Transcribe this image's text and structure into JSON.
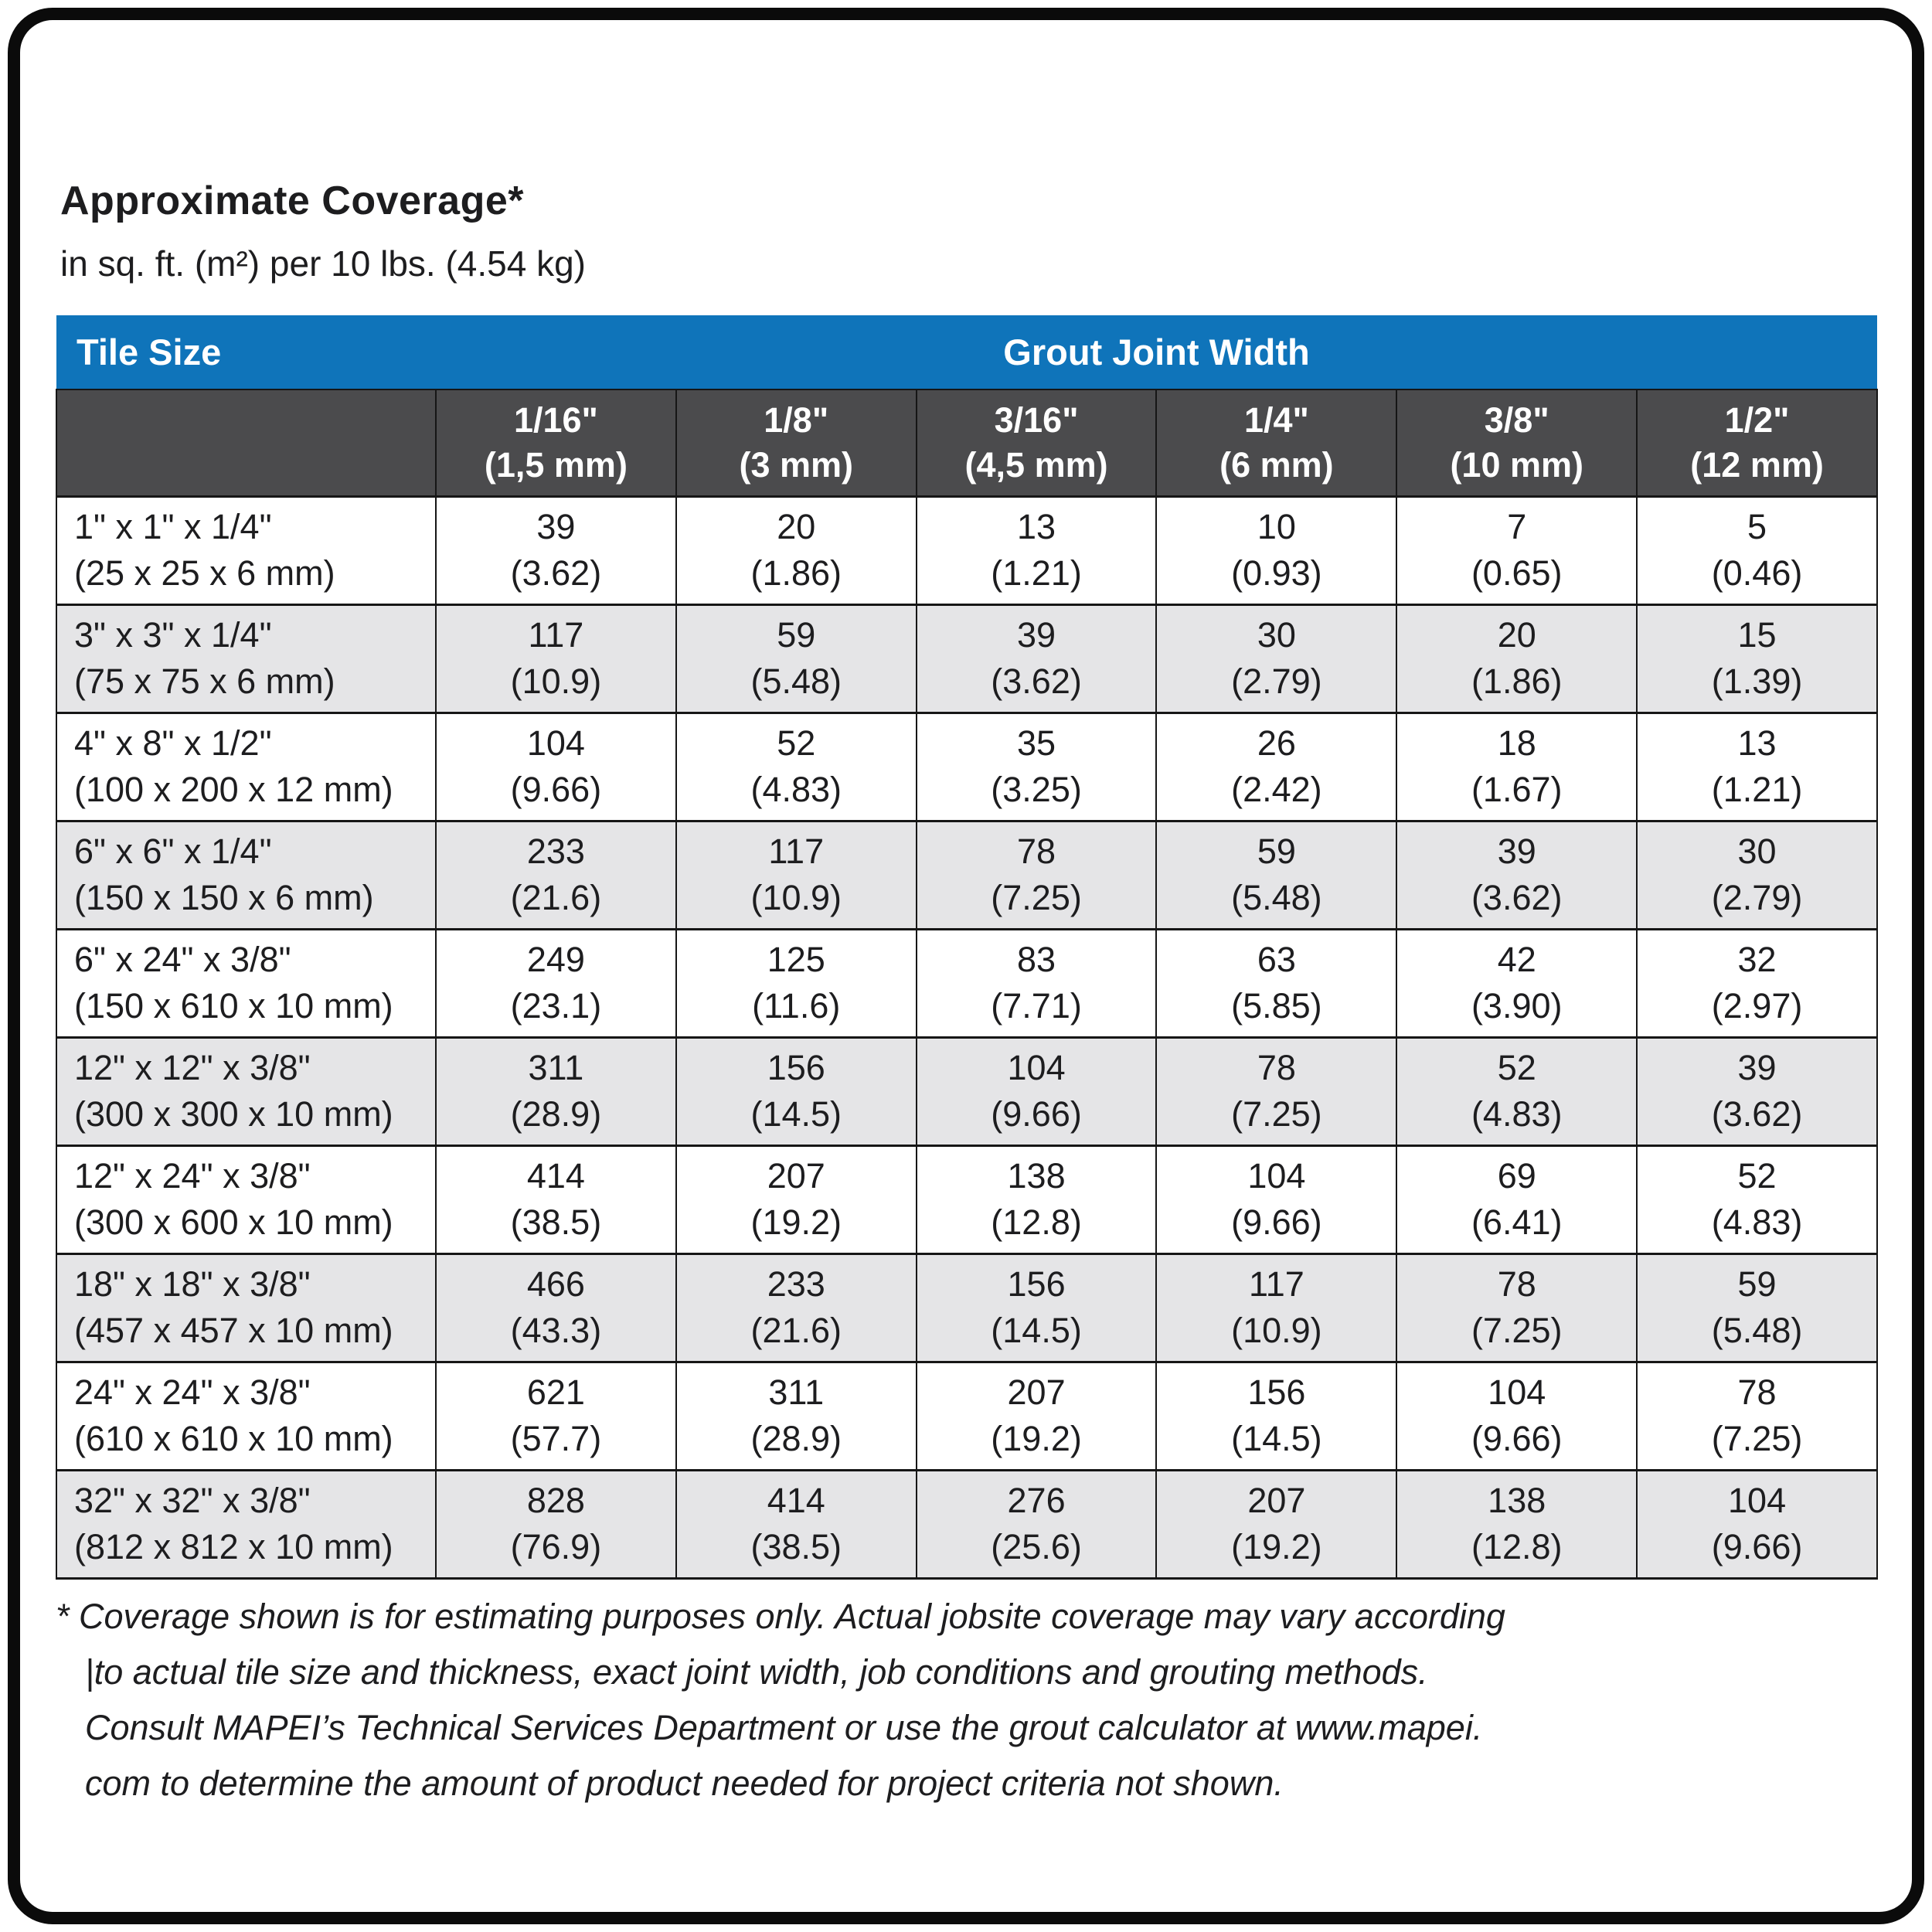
{
  "page": {
    "title": "Approximate Coverage*",
    "subtitle": "in sq. ft. (m²) per 10 lbs. (4.54 kg)"
  },
  "colors": {
    "header_blue": "#0f74ba",
    "header_dark_gray": "#4b4b4d",
    "row_alternate_gray": "#e5e5e7",
    "text": "#1d1d1f"
  },
  "table": {
    "header": {
      "tile_size": "Tile Size",
      "grout_joint_width": "Grout Joint Width"
    },
    "columns": [
      {
        "size": "1/16\"",
        "metric": "(1,5 mm)"
      },
      {
        "size": "1/8\"",
        "metric": "(3 mm)"
      },
      {
        "size": "3/16\"",
        "metric": "(4,5 mm)"
      },
      {
        "size": "1/4\"",
        "metric": "(6 mm)"
      },
      {
        "size": "3/8\"",
        "metric": "(10 mm)"
      },
      {
        "size": "1/2\"",
        "metric": "(12 mm)"
      }
    ],
    "rows": [
      {
        "tile": "1\" x 1\" x 1/4\"",
        "tile_metric": "(25 x 25 x 6 mm)",
        "values": [
          {
            "v": "39",
            "m": "(3.62)"
          },
          {
            "v": "20",
            "m": "(1.86)"
          },
          {
            "v": "13",
            "m": "(1.21)"
          },
          {
            "v": "10",
            "m": "(0.93)"
          },
          {
            "v": "7",
            "m": "(0.65)"
          },
          {
            "v": "5",
            "m": "(0.46)"
          }
        ]
      },
      {
        "tile": "3\" x 3\" x 1/4\"",
        "tile_metric": "(75 x 75 x 6 mm)",
        "values": [
          {
            "v": "117",
            "m": "(10.9)"
          },
          {
            "v": "59",
            "m": "(5.48)"
          },
          {
            "v": "39",
            "m": "(3.62)"
          },
          {
            "v": "30",
            "m": "(2.79)"
          },
          {
            "v": "20",
            "m": "(1.86)"
          },
          {
            "v": "15",
            "m": "(1.39)"
          }
        ]
      },
      {
        "tile": "4\" x 8\" x 1/2\"",
        "tile_metric": "(100 x 200 x 12 mm)",
        "values": [
          {
            "v": "104",
            "m": "(9.66)"
          },
          {
            "v": "52",
            "m": "(4.83)"
          },
          {
            "v": "35",
            "m": "(3.25)"
          },
          {
            "v": "26",
            "m": "(2.42)"
          },
          {
            "v": "18",
            "m": "(1.67)"
          },
          {
            "v": "13",
            "m": "(1.21)"
          }
        ]
      },
      {
        "tile": "6\" x 6\" x 1/4\"",
        "tile_metric": "(150 x 150 x 6 mm)",
        "values": [
          {
            "v": "233",
            "m": "(21.6)"
          },
          {
            "v": "117",
            "m": "(10.9)"
          },
          {
            "v": "78",
            "m": "(7.25)"
          },
          {
            "v": "59",
            "m": "(5.48)"
          },
          {
            "v": "39",
            "m": "(3.62)"
          },
          {
            "v": "30",
            "m": "(2.79)"
          }
        ]
      },
      {
        "tile": "6\" x 24\" x 3/8\"",
        "tile_metric": "(150 x 610 x 10 mm)",
        "values": [
          {
            "v": "249",
            "m": "(23.1)"
          },
          {
            "v": "125",
            "m": "(11.6)"
          },
          {
            "v": "83",
            "m": "(7.71)"
          },
          {
            "v": "63",
            "m": "(5.85)"
          },
          {
            "v": "42",
            "m": "(3.90)"
          },
          {
            "v": "32",
            "m": "(2.97)"
          }
        ]
      },
      {
        "tile": "12\" x 12\" x 3/8\"",
        "tile_metric": "(300 x 300 x 10 mm)",
        "values": [
          {
            "v": "311",
            "m": "(28.9)"
          },
          {
            "v": "156",
            "m": "(14.5)"
          },
          {
            "v": "104",
            "m": "(9.66)"
          },
          {
            "v": "78",
            "m": "(7.25)"
          },
          {
            "v": "52",
            "m": "(4.83)"
          },
          {
            "v": "39",
            "m": "(3.62)"
          }
        ]
      },
      {
        "tile": "12\" x 24\" x 3/8\"",
        "tile_metric": "(300 x 600 x 10 mm)",
        "values": [
          {
            "v": "414",
            "m": "(38.5)"
          },
          {
            "v": "207",
            "m": "(19.2)"
          },
          {
            "v": "138",
            "m": "(12.8)"
          },
          {
            "v": "104",
            "m": "(9.66)"
          },
          {
            "v": "69",
            "m": "(6.41)"
          },
          {
            "v": "52",
            "m": "(4.83)"
          }
        ]
      },
      {
        "tile": "18\" x 18\" x 3/8\"",
        "tile_metric": "(457 x 457 x 10 mm)",
        "values": [
          {
            "v": "466",
            "m": "(43.3)"
          },
          {
            "v": "233",
            "m": "(21.6)"
          },
          {
            "v": "156",
            "m": "(14.5)"
          },
          {
            "v": "117",
            "m": "(10.9)"
          },
          {
            "v": "78",
            "m": "(7.25)"
          },
          {
            "v": "59",
            "m": "(5.48)"
          }
        ]
      },
      {
        "tile": "24\" x 24\" x 3/8\"",
        "tile_metric": "(610 x 610 x 10 mm)",
        "values": [
          {
            "v": "621",
            "m": "(57.7)"
          },
          {
            "v": "311",
            "m": "(28.9)"
          },
          {
            "v": "207",
            "m": "(19.2)"
          },
          {
            "v": "156",
            "m": "(14.5)"
          },
          {
            "v": "104",
            "m": "(9.66)"
          },
          {
            "v": "78",
            "m": "(7.25)"
          }
        ]
      },
      {
        "tile": "32\" x 32\" x 3/8\"",
        "tile_metric": "(812 x 812 x 10 mm)",
        "values": [
          {
            "v": "828",
            "m": "(76.9)"
          },
          {
            "v": "414",
            "m": "(38.5)"
          },
          {
            "v": "276",
            "m": "(25.6)"
          },
          {
            "v": "207",
            "m": "(19.2)"
          },
          {
            "v": "138",
            "m": "(12.8)"
          },
          {
            "v": "104",
            "m": "(9.66)"
          }
        ]
      }
    ]
  },
  "footnote": {
    "lines": [
      "* Coverage shown is for estimating purposes only. Actual jobsite coverage may vary according",
      "|to actual tile size and thickness, exact joint width, job conditions and grouting methods.",
      "Consult MAPEI’s Technical Services Department or use the grout calculator at www.mapei.",
      "com to determine the amount of product needed for project criteria not shown."
    ]
  }
}
